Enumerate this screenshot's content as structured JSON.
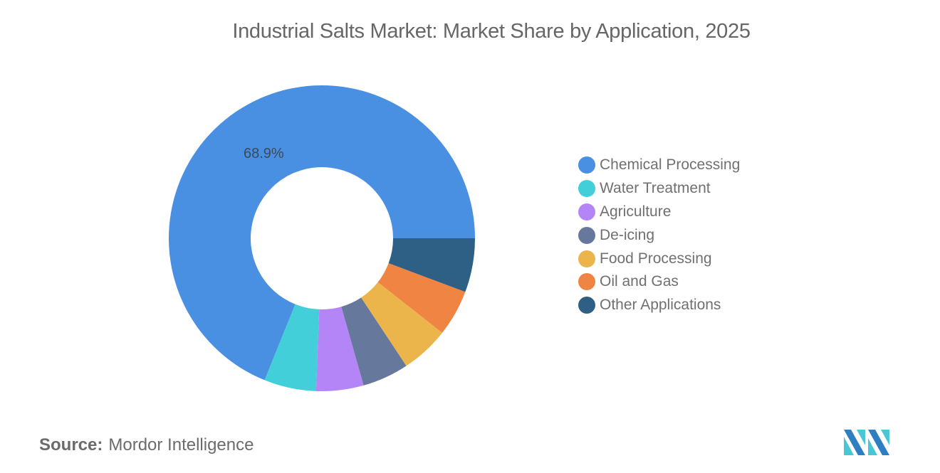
{
  "title": "Industrial Salts Market: Market Share by Application, 2025",
  "source": {
    "label": "Source:",
    "value": "Mordor Intelligence"
  },
  "logo": {
    "name": "mordor-intelligence-logo",
    "colors": [
      "#2e7fc1",
      "#4ac7d4"
    ]
  },
  "legend": {
    "items": [
      {
        "label": "Chemical Processing",
        "color": "#4a90e2"
      },
      {
        "label": "Water Treatment",
        "color": "#42cfd9"
      },
      {
        "label": "Agriculture",
        "color": "#b385f7"
      },
      {
        "label": "De-icing",
        "color": "#66799c"
      },
      {
        "label": "Food Processing",
        "color": "#ebb54c"
      },
      {
        "label": "Oil and Gas",
        "color": "#f08442"
      },
      {
        "label": "Other Applications",
        "color": "#2e5f84"
      }
    ]
  },
  "chart_data": {
    "type": "pie",
    "subtype": "donut",
    "title": "Industrial Salts Market: Market Share by Application, 2025",
    "categories": [
      "Chemical Processing",
      "Water Treatment",
      "Agriculture",
      "De-icing",
      "Food Processing",
      "Oil and Gas",
      "Other Applications"
    ],
    "values": [
      68.9,
      5.5,
      5.0,
      4.9,
      5.1,
      4.9,
      5.7
    ],
    "unit": "%",
    "colors": [
      "#4a90e2",
      "#42cfd9",
      "#b385f7",
      "#66799c",
      "#ebb54c",
      "#f08442",
      "#2e5f84"
    ],
    "data_labels": [
      {
        "category": "Chemical Processing",
        "text": "68.9%"
      }
    ],
    "start_angle": "3 o'clock, counter-clockwise",
    "legend_position": "right",
    "source": "Mordor Intelligence"
  }
}
